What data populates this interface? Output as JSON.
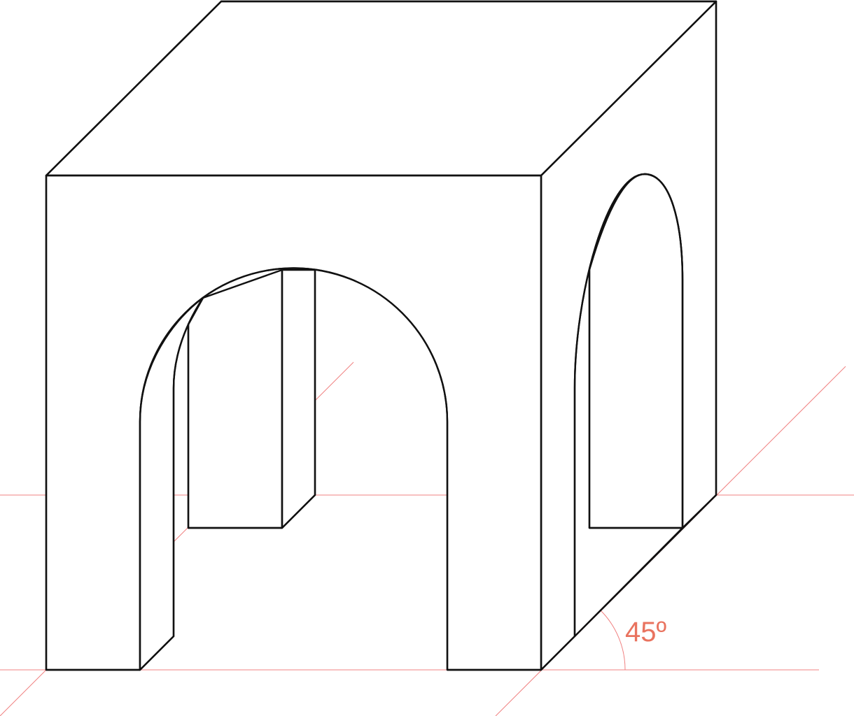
{
  "angle_label": "45º",
  "colors": {
    "background": "#ffffff",
    "outline": "#111111",
    "guide_lines": "#f08080",
    "angle_label": "#e9735f"
  }
}
